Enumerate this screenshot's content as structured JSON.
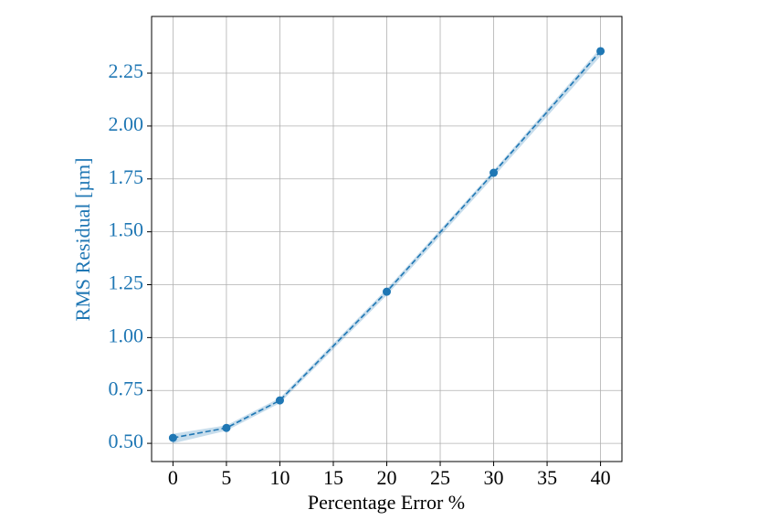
{
  "chart_data": {
    "type": "line",
    "x_label": "Percentage Error %",
    "y_label": "RMS Residual [µm]",
    "x": [
      0,
      5,
      10,
      20,
      30,
      40
    ],
    "series": [
      {
        "color": "#1f77b4",
        "values": [
          0.526,
          0.573,
          0.703,
          1.217,
          1.779,
          2.354
        ],
        "band_lower": [
          0.5,
          0.56,
          0.69,
          1.2,
          1.76,
          2.33
        ],
        "band_upper": [
          0.545,
          0.585,
          0.715,
          1.23,
          1.79,
          2.37
        ]
      }
    ],
    "xlim": [
      -2,
      42
    ],
    "xticks": [
      0,
      5,
      10,
      15,
      20,
      25,
      30,
      35,
      40
    ],
    "ylim": [
      0.414,
      2.518
    ],
    "yticks": [
      {
        "value": 0.5,
        "label": "0.50"
      },
      {
        "value": 0.75,
        "label": "0.75"
      },
      {
        "value": 1.0,
        "label": "1.00"
      },
      {
        "value": 1.25,
        "label": "1.25"
      },
      {
        "value": 1.5,
        "label": "1.50"
      },
      {
        "value": 1.75,
        "label": "1.75"
      },
      {
        "value": 2.0,
        "label": "2.00"
      },
      {
        "value": 2.25,
        "label": "2.25"
      }
    ],
    "grid": true,
    "y_axis_color": "#1f77b4"
  }
}
